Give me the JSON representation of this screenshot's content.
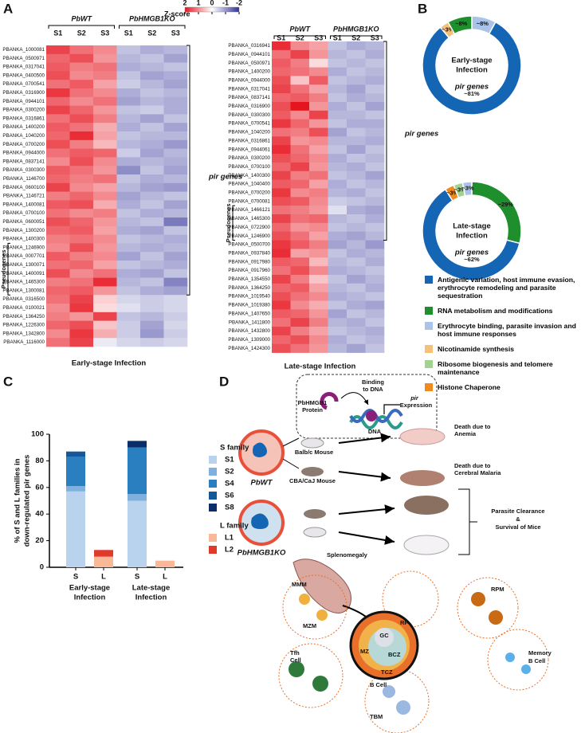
{
  "panels": [
    "A",
    "B",
    "C",
    "D"
  ],
  "chart_data": [
    {
      "type": "heatmap",
      "title": "Early-stage Infection",
      "column_groups": [
        "PbWT",
        "PbHMGB1KO"
      ],
      "columns": [
        "S1",
        "S2",
        "S3",
        "S1",
        "S2",
        "S3"
      ],
      "annotations": [
        "pir genes",
        "Pseudogenes"
      ],
      "colorbar": {
        "label": "Z-score",
        "lim": [
          2,
          -2
        ],
        "ticks": [
          2,
          1,
          0,
          -1,
          -2
        ]
      },
      "rows": [
        "PBANKA_1000081",
        "PBANKA_0500971",
        "PBANKA_0317041",
        "PBANKA_0400500",
        "PBANKA_0700541",
        "PBANKA_0316900",
        "PBANKA_0944101",
        "PBANKA_0300200",
        "PBANKA_0316861",
        "PBANKA_1400200",
        "PBANKA_1040200",
        "PBANKA_0700200",
        "PBANKA_0944000",
        "PBANKA_0837141",
        "PBANKA_0300300",
        "PBANKA_1146700",
        "PBANKA_0600100",
        "PBANKA_1146721",
        "PBANKA_1400081",
        "PBANKA_0700100",
        "PBANKA_0600051",
        "PBANKA_1300200",
        "PBANKA_1400300",
        "PBANKA_1246900",
        "PBANKA_0007701",
        "PBANKA_1300071",
        "PBANKA_1400091",
        "PBANKA_1465300",
        "PBANKA_1300081",
        "PBANKA_0316500",
        "PBANKA_0100021",
        "PBANKA_1364250",
        "PBANKA_1226300",
        "PBANKA_1342800",
        "PBANKA_1116000"
      ],
      "values": [
        [
          1.6,
          1.2,
          1.0,
          -0.6,
          -0.8,
          -0.7
        ],
        [
          1.3,
          1.5,
          0.9,
          -0.7,
          -0.6,
          -0.9
        ],
        [
          1.4,
          1.1,
          1.2,
          -0.8,
          -0.7,
          -0.6
        ],
        [
          1.5,
          1.0,
          1.1,
          -0.6,
          -0.9,
          -0.8
        ],
        [
          1.2,
          1.4,
          0.8,
          -0.5,
          -0.7,
          -0.9
        ],
        [
          1.7,
          1.2,
          1.0,
          -0.8,
          -0.6,
          -0.7
        ],
        [
          1.3,
          1.0,
          1.2,
          -0.9,
          -0.7,
          -0.8
        ],
        [
          1.6,
          1.3,
          0.9,
          -0.6,
          -0.5,
          -0.8
        ],
        [
          1.2,
          1.5,
          1.1,
          -0.7,
          -0.9,
          -0.6
        ],
        [
          1.4,
          1.2,
          0.7,
          -0.8,
          -0.6,
          -0.9
        ],
        [
          1.3,
          1.8,
          0.8,
          -0.6,
          -0.7,
          -0.7
        ],
        [
          1.5,
          1.1,
          0.6,
          -0.7,
          -0.8,
          -1.0
        ],
        [
          1.2,
          1.4,
          1.3,
          -0.5,
          -0.9,
          -0.7
        ],
        [
          1.0,
          1.5,
          1.0,
          -0.8,
          -0.7,
          -0.8
        ],
        [
          1.4,
          1.2,
          0.9,
          -1.1,
          -0.6,
          -0.9
        ],
        [
          1.3,
          1.1,
          1.2,
          -0.6,
          -0.8,
          -0.7
        ],
        [
          1.6,
          1.0,
          0.8,
          -0.7,
          -0.9,
          -1.0
        ],
        [
          1.1,
          1.3,
          1.0,
          -0.9,
          -0.7,
          -0.6
        ],
        [
          1.4,
          1.5,
          0.7,
          -0.8,
          -0.6,
          -0.9
        ],
        [
          1.2,
          1.0,
          1.1,
          -0.6,
          -0.8,
          -0.7
        ],
        [
          1.5,
          1.3,
          0.9,
          -0.7,
          -0.6,
          -1.3
        ],
        [
          1.3,
          1.4,
          0.8,
          -0.8,
          -0.9,
          -0.6
        ],
        [
          1.1,
          1.2,
          1.0,
          -0.6,
          -0.7,
          -0.8
        ],
        [
          1.0,
          1.5,
          0.9,
          -0.7,
          -0.8,
          -0.7
        ],
        [
          1.4,
          1.1,
          1.0,
          -0.9,
          -0.6,
          -0.9
        ],
        [
          1.2,
          1.3,
          0.8,
          -0.6,
          -0.7,
          -0.8
        ],
        [
          1.5,
          1.0,
          1.2,
          -0.8,
          -0.9,
          -0.6
        ],
        [
          1.1,
          1.2,
          1.8,
          -0.7,
          -0.6,
          -1.2
        ],
        [
          1.3,
          1.4,
          0.9,
          -0.6,
          -0.8,
          -0.9
        ],
        [
          1.2,
          1.6,
          0.4,
          -0.4,
          -0.5,
          -0.4
        ],
        [
          1.0,
          1.7,
          0.3,
          -0.3,
          -0.5,
          -0.4
        ],
        [
          1.1,
          0.9,
          1.6,
          -0.6,
          -0.7,
          -0.5
        ],
        [
          1.3,
          1.5,
          0.5,
          -0.5,
          -0.9,
          -0.4
        ],
        [
          1.0,
          1.7,
          0.7,
          -0.5,
          -1.0,
          -0.5
        ],
        [
          1.2,
          1.6,
          -0.2,
          -0.4,
          -0.5,
          -0.4
        ]
      ]
    },
    {
      "type": "heatmap",
      "title": "Late-stage Infection",
      "column_groups": [
        "PbWT",
        "PbHMGB1KO"
      ],
      "columns": [
        "S1",
        "S2",
        "S3",
        "S1",
        "S2",
        "S3"
      ],
      "annotations": [
        "pir genes",
        "Pseudogenes"
      ],
      "rows": [
        "PBANKA_0316941",
        "PBANKA_0944101",
        "PBANKA_0500971",
        "PBANKA_1400200",
        "PBANKA_0944000",
        "PBANKA_0317041",
        "PBANKA_0837141",
        "PBANKA_0316900",
        "PBANKA_0300300",
        "PBANKA_0700541",
        "PBANKA_1040200",
        "PBANKA_0316861",
        "PBANKA_0944061",
        "PBANKA_0300200",
        "PBANKA_0700100",
        "PBANKA_1400300",
        "PBANKA_1040400",
        "PBANKA_0700200",
        "PBANKA_0700081",
        "PBANKA_1466121",
        "PBANKA_1465300",
        "PBANKA_0722900",
        "PBANKA_1246900",
        "PBANKA_0500700",
        "PBANKA_0937840",
        "PBANKA_0917980",
        "PBANKA_0917960",
        "PBANKA_1354550",
        "PBANKA_1364250",
        "PBANKA_1019540",
        "PBANKA_1019380",
        "PBANKA_1407650",
        "PBANKA_1411800",
        "PBANKA_1432800",
        "PBANKA_1309000",
        "PBANKA_1424300"
      ],
      "values": [
        [
          1.8,
          1.0,
          0.8,
          -0.6,
          -0.8,
          -0.7
        ],
        [
          1.2,
          1.6,
          0.9,
          -0.7,
          -0.6,
          -0.8
        ],
        [
          1.4,
          1.1,
          0.3,
          -0.6,
          -0.7,
          -0.6
        ],
        [
          1.3,
          1.2,
          1.0,
          -0.8,
          -0.6,
          -0.7
        ],
        [
          1.5,
          0.5,
          1.4,
          -0.6,
          -0.7,
          -0.8
        ],
        [
          1.6,
          1.2,
          0.8,
          -0.7,
          -0.9,
          -0.6
        ],
        [
          1.3,
          1.4,
          1.1,
          -0.6,
          -0.8,
          -0.7
        ],
        [
          1.5,
          2.0,
          0.9,
          -0.8,
          -0.6,
          -0.9
        ],
        [
          1.4,
          1.0,
          1.6,
          -0.7,
          -0.7,
          -0.6
        ],
        [
          1.7,
          1.3,
          0.9,
          -0.6,
          -0.8,
          -0.8
        ],
        [
          1.2,
          1.1,
          1.5,
          -0.9,
          -0.6,
          -0.7
        ],
        [
          1.6,
          0.9,
          1.0,
          -0.7,
          -0.7,
          -0.8
        ],
        [
          1.8,
          1.2,
          0.8,
          -0.6,
          -0.9,
          -0.6
        ],
        [
          1.5,
          1.3,
          1.0,
          -0.8,
          -0.6,
          -0.7
        ],
        [
          1.3,
          1.6,
          0.9,
          -0.7,
          -0.8,
          -0.6
        ],
        [
          1.6,
          1.1,
          1.2,
          -0.6,
          -0.7,
          -0.9
        ],
        [
          1.4,
          1.3,
          0.8,
          -0.8,
          -0.6,
          -0.7
        ],
        [
          1.7,
          1.0,
          1.1,
          -0.7,
          -0.8,
          -0.6
        ],
        [
          1.5,
          1.4,
          1.0,
          -0.5,
          -0.6,
          -0.7
        ],
        [
          1.2,
          1.1,
          0.9,
          -0.3,
          -0.8,
          -0.9
        ],
        [
          1.6,
          1.2,
          1.3,
          -0.7,
          -0.6,
          -0.8
        ],
        [
          1.3,
          0.9,
          1.0,
          -0.6,
          -0.7,
          -0.6
        ],
        [
          1.5,
          1.2,
          0.8,
          -0.8,
          -0.9,
          -0.7
        ],
        [
          1.7,
          1.4,
          1.1,
          -0.9,
          -0.7,
          -1.0
        ],
        [
          1.8,
          0.8,
          0.9,
          -0.6,
          -0.8,
          -0.7
        ],
        [
          1.4,
          1.3,
          0.6,
          -0.7,
          -0.6,
          -0.8
        ],
        [
          1.2,
          1.5,
          1.0,
          -0.8,
          -0.7,
          -0.6
        ],
        [
          1.6,
          1.1,
          0.5,
          -0.6,
          -0.9,
          -0.7
        ],
        [
          1.3,
          1.4,
          0.8,
          -0.7,
          -0.6,
          -0.8
        ],
        [
          1.5,
          1.2,
          1.0,
          -0.8,
          -0.7,
          -0.6
        ],
        [
          1.7,
          1.0,
          0.7,
          -0.6,
          -0.8,
          -0.9
        ],
        [
          1.4,
          1.3,
          0.9,
          -0.9,
          -0.6,
          -0.7
        ],
        [
          1.2,
          1.6,
          1.1,
          -0.7,
          -0.8,
          -0.6
        ],
        [
          1.6,
          1.1,
          0.8,
          -0.6,
          -0.7,
          -0.8
        ],
        [
          1.3,
          1.5,
          1.0,
          -0.8,
          -0.6,
          -0.7
        ],
        [
          1.5,
          1.2,
          0.9,
          -0.7,
          -0.9,
          -0.6
        ]
      ]
    },
    {
      "type": "pie",
      "center_lines": [
        "Early-stage",
        "Infection"
      ],
      "annotation": "pir genes",
      "values": [
        8,
        81,
        3,
        8
      ],
      "value_labels": [
        "~8%",
        "~81%",
        "~3%",
        "~8%"
      ],
      "colors": [
        "#a9c4e8",
        "#1565b5",
        "#f5c07a",
        "#1f8f2e"
      ]
    },
    {
      "type": "pie",
      "center_lines": [
        "Late-stage",
        "Infection"
      ],
      "annotation": "pir genes",
      "values": [
        29,
        62,
        3,
        3,
        3
      ],
      "value_labels": [
        "~29%",
        "~62%",
        "~3%",
        "~3%",
        "~3%"
      ],
      "colors": [
        "#1f8f2e",
        "#1565b5",
        "#f08a1c",
        "#9fd38f",
        "#a9c4e8"
      ]
    },
    {
      "type": "stacked_bar",
      "ylabel": [
        "% of S and L families in",
        "down-regulated pir genes"
      ],
      "categories": [
        "S",
        "L",
        "S",
        "L"
      ],
      "groups": [
        [
          "Early-stage",
          "Infection"
        ],
        [
          "Late-stage",
          "Infection"
        ]
      ],
      "legend_titles": [
        "S family",
        "L family"
      ],
      "ylim": [
        0,
        100
      ],
      "yticks": [
        0,
        20,
        40,
        60,
        80,
        100
      ],
      "series": [
        {
          "name": "S1",
          "color": "#b9d3ee",
          "values": [
            57,
            null,
            50,
            null
          ]
        },
        {
          "name": "S2",
          "color": "#7fb0de",
          "values": [
            4,
            null,
            5,
            null
          ]
        },
        {
          "name": "S4",
          "color": "#2a7fc0",
          "values": [
            22,
            null,
            35,
            null
          ]
        },
        {
          "name": "S6",
          "color": "#15589a",
          "values": [
            4,
            null,
            0,
            null
          ]
        },
        {
          "name": "S8",
          "color": "#0b2e6b",
          "values": [
            0,
            null,
            5,
            null
          ]
        },
        {
          "name": "L1",
          "color": "#f9b898",
          "values": [
            null,
            8,
            null,
            5
          ]
        },
        {
          "name": "L2",
          "color": "#e03a2a",
          "values": [
            null,
            5,
            null,
            0
          ]
        }
      ]
    }
  ],
  "legend_b": [
    {
      "name": "Antigenic variation, host immune evasion, erythrocyte remodeling and parasite sequestration",
      "color": "#1565b5"
    },
    {
      "name": "RNA metabolism and modifications",
      "color": "#1f8f2e"
    },
    {
      "name": "Erythrocyte binding, parasite invasion and host immune responses",
      "color": "#a9c4e8"
    },
    {
      "name": "Nicotinamide synthesis",
      "color": "#f5c07a"
    },
    {
      "name": "Ribosome biogenesis and telomere maintenance",
      "color": "#9fd38f"
    },
    {
      "name": "Histone Chaperone",
      "color": "#f08a1c"
    }
  ],
  "diagram": {
    "protein": [
      "PbHMGB1",
      "Protein"
    ],
    "binding": [
      "Binding",
      "to DNA"
    ],
    "expression": [
      "pir",
      "Expression"
    ],
    "dna": "DNA",
    "balbc": "Balb/c Mouse",
    "cba": "CBA/CaJ Mouse",
    "wt": "PbWT",
    "anemia": [
      "Death due to",
      "Anemia"
    ],
    "cm": [
      "Death due to",
      "Cerebral Malaria"
    ],
    "ko": "PbHMGB1KO",
    "spleno": "Splenomegaly",
    "clearance": [
      "Parasite Clearance",
      "&",
      "Survival of Mice"
    ],
    "regions": [
      "RP",
      "GC",
      "MZ",
      "BCZ",
      "TCZ"
    ],
    "cells": [
      "MMM",
      "MZM",
      "RPM",
      "Tfh",
      "Cell",
      "Memory",
      "B Cell",
      "B Cell",
      "TBM"
    ]
  }
}
